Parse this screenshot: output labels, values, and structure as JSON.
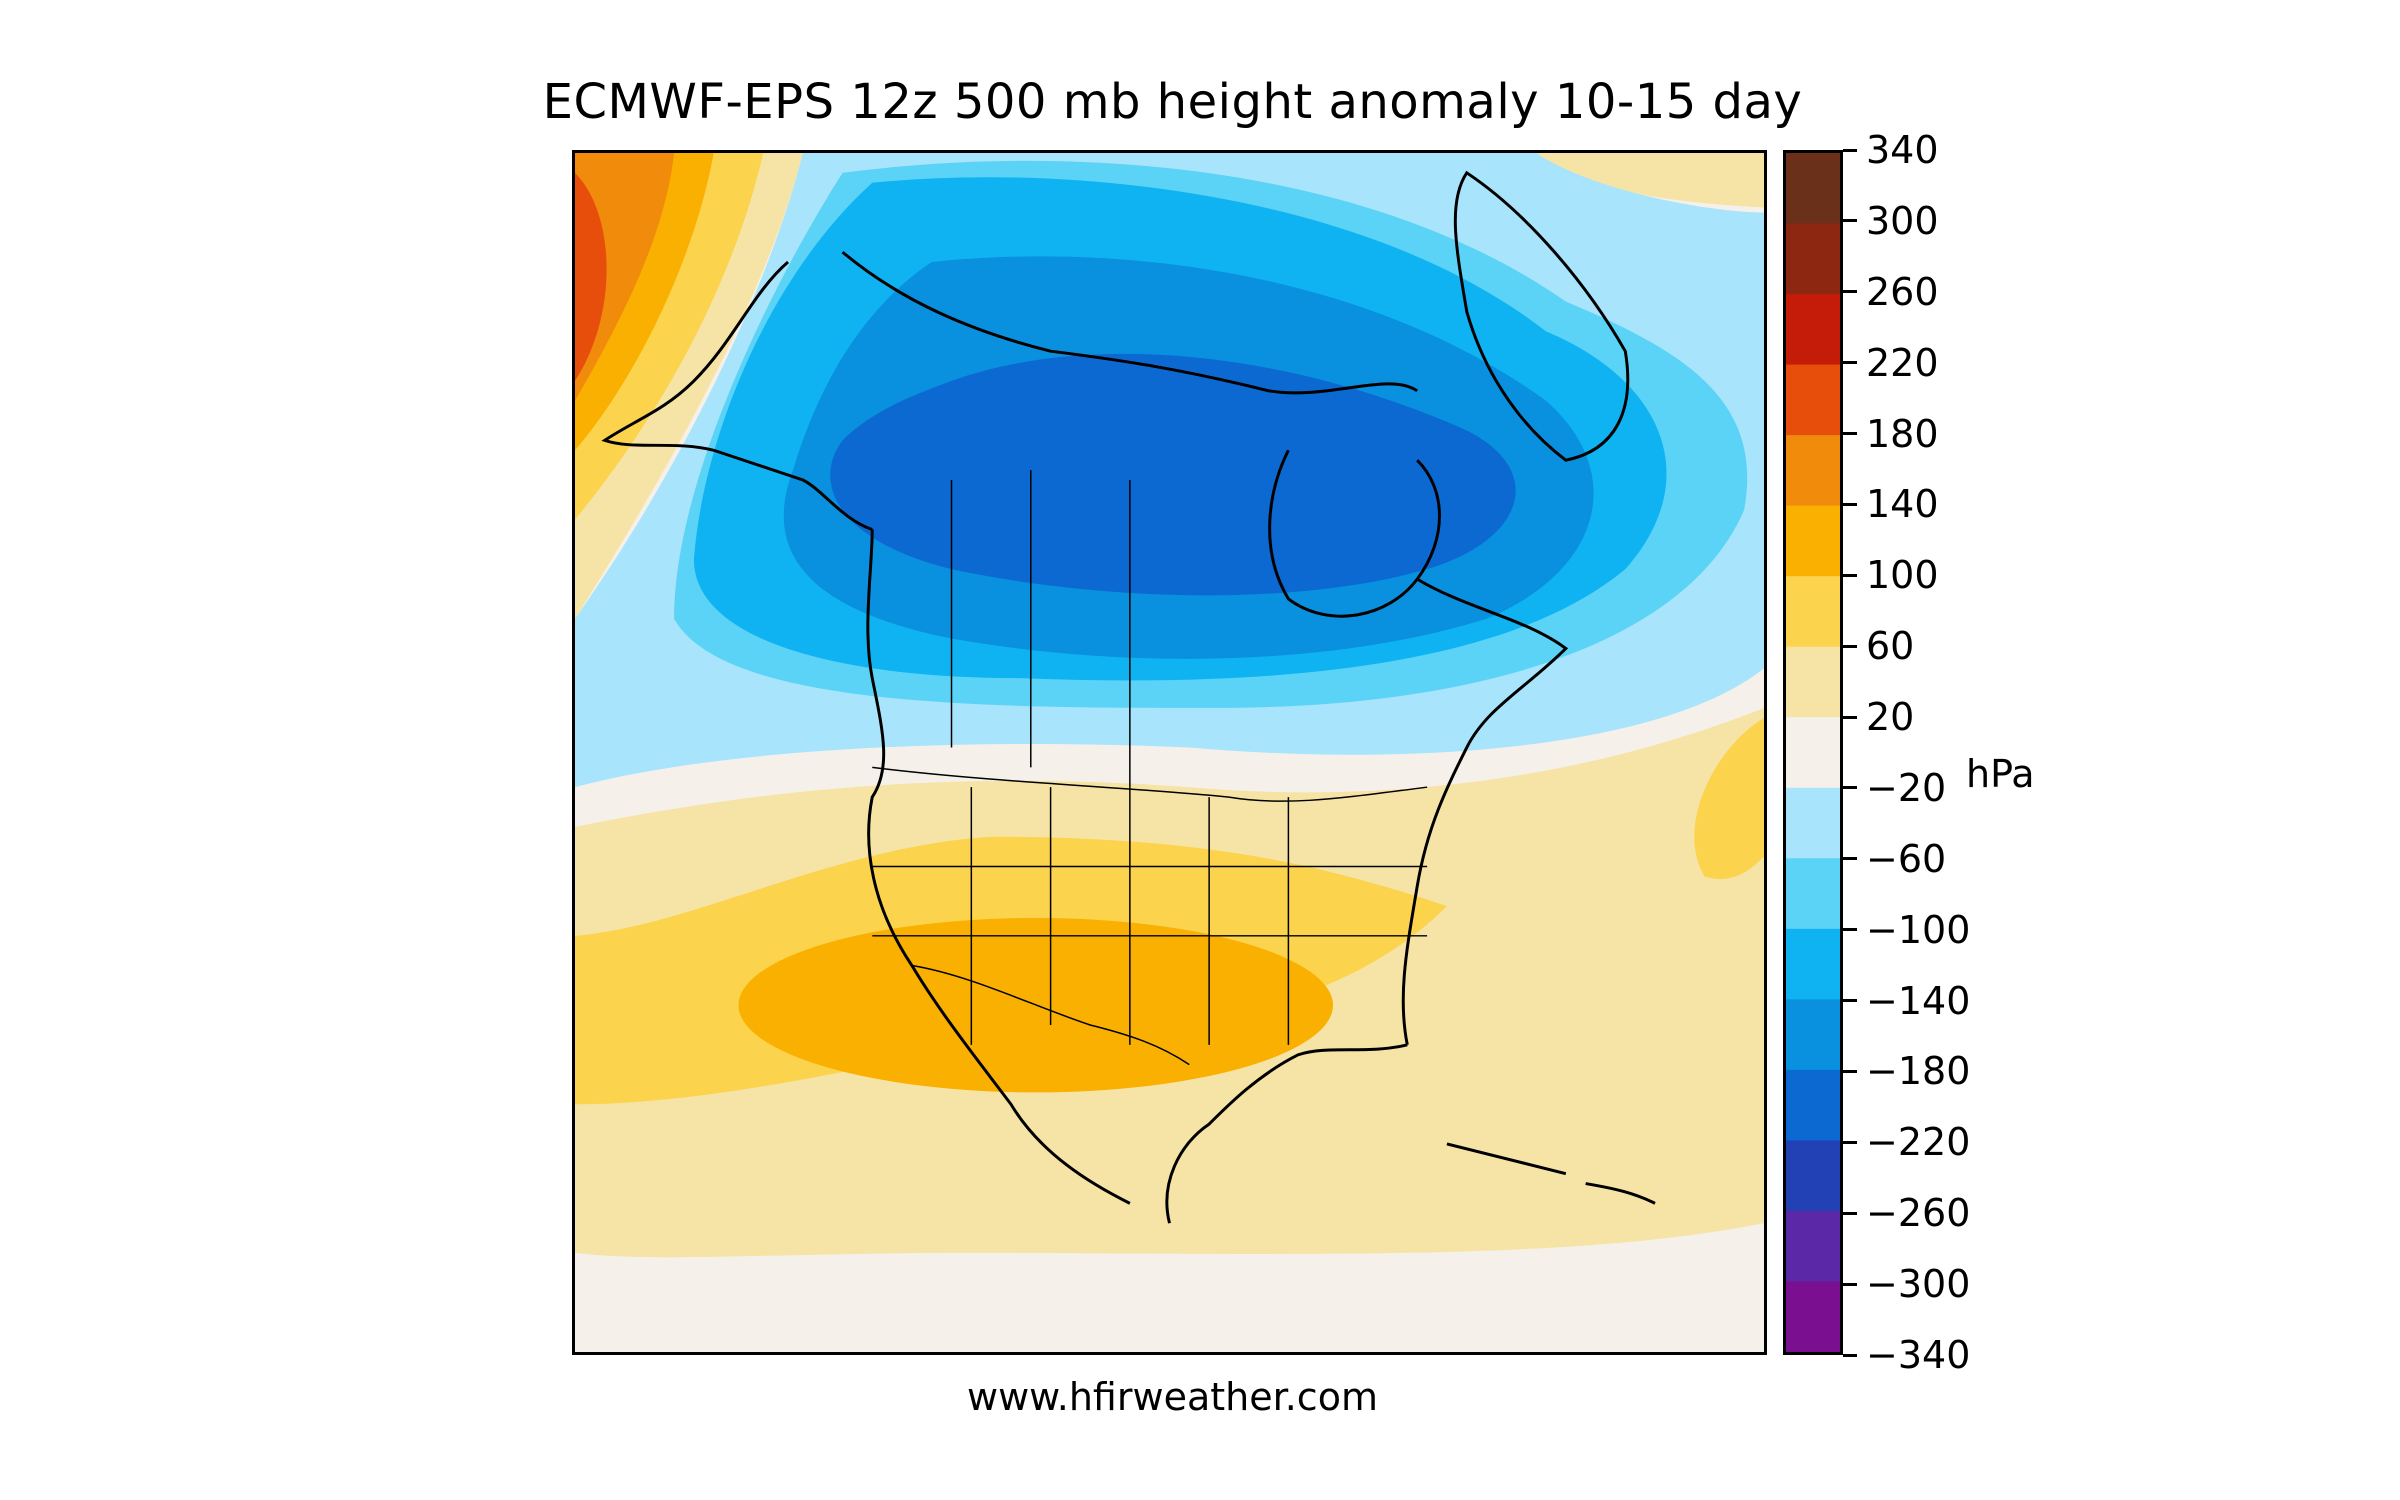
{
  "title": "ECMWF-EPS 12z 500 mb height anomaly 10-15 day",
  "footer": "www.hfirweather.com",
  "colorbar": {
    "unit": "hPa",
    "ticks": [
      "340",
      "300",
      "260",
      "220",
      "180",
      "140",
      "100",
      "60",
      "20",
      "−20",
      "−60",
      "−100",
      "−140",
      "−180",
      "−220",
      "−260",
      "−300",
      "−340"
    ],
    "colors": [
      "#6a3019",
      "#8e2711",
      "#c41c08",
      "#e84e0b",
      "#f18b0b",
      "#f9b000",
      "#fbd34d",
      "#f6e4a6",
      "#f5f1ea",
      "#a8e4fb",
      "#5bd3f6",
      "#0fb3f2",
      "#0990de",
      "#0b69d1",
      "#2241b4",
      "#5b29a8",
      "#7a1090"
    ]
  },
  "map": {
    "region": "North America",
    "contour_levels": [
      "-220",
      "-180",
      "-140",
      "-100",
      "-60",
      "-20",
      "20",
      "60",
      "100",
      "140",
      "180",
      "220"
    ]
  }
}
